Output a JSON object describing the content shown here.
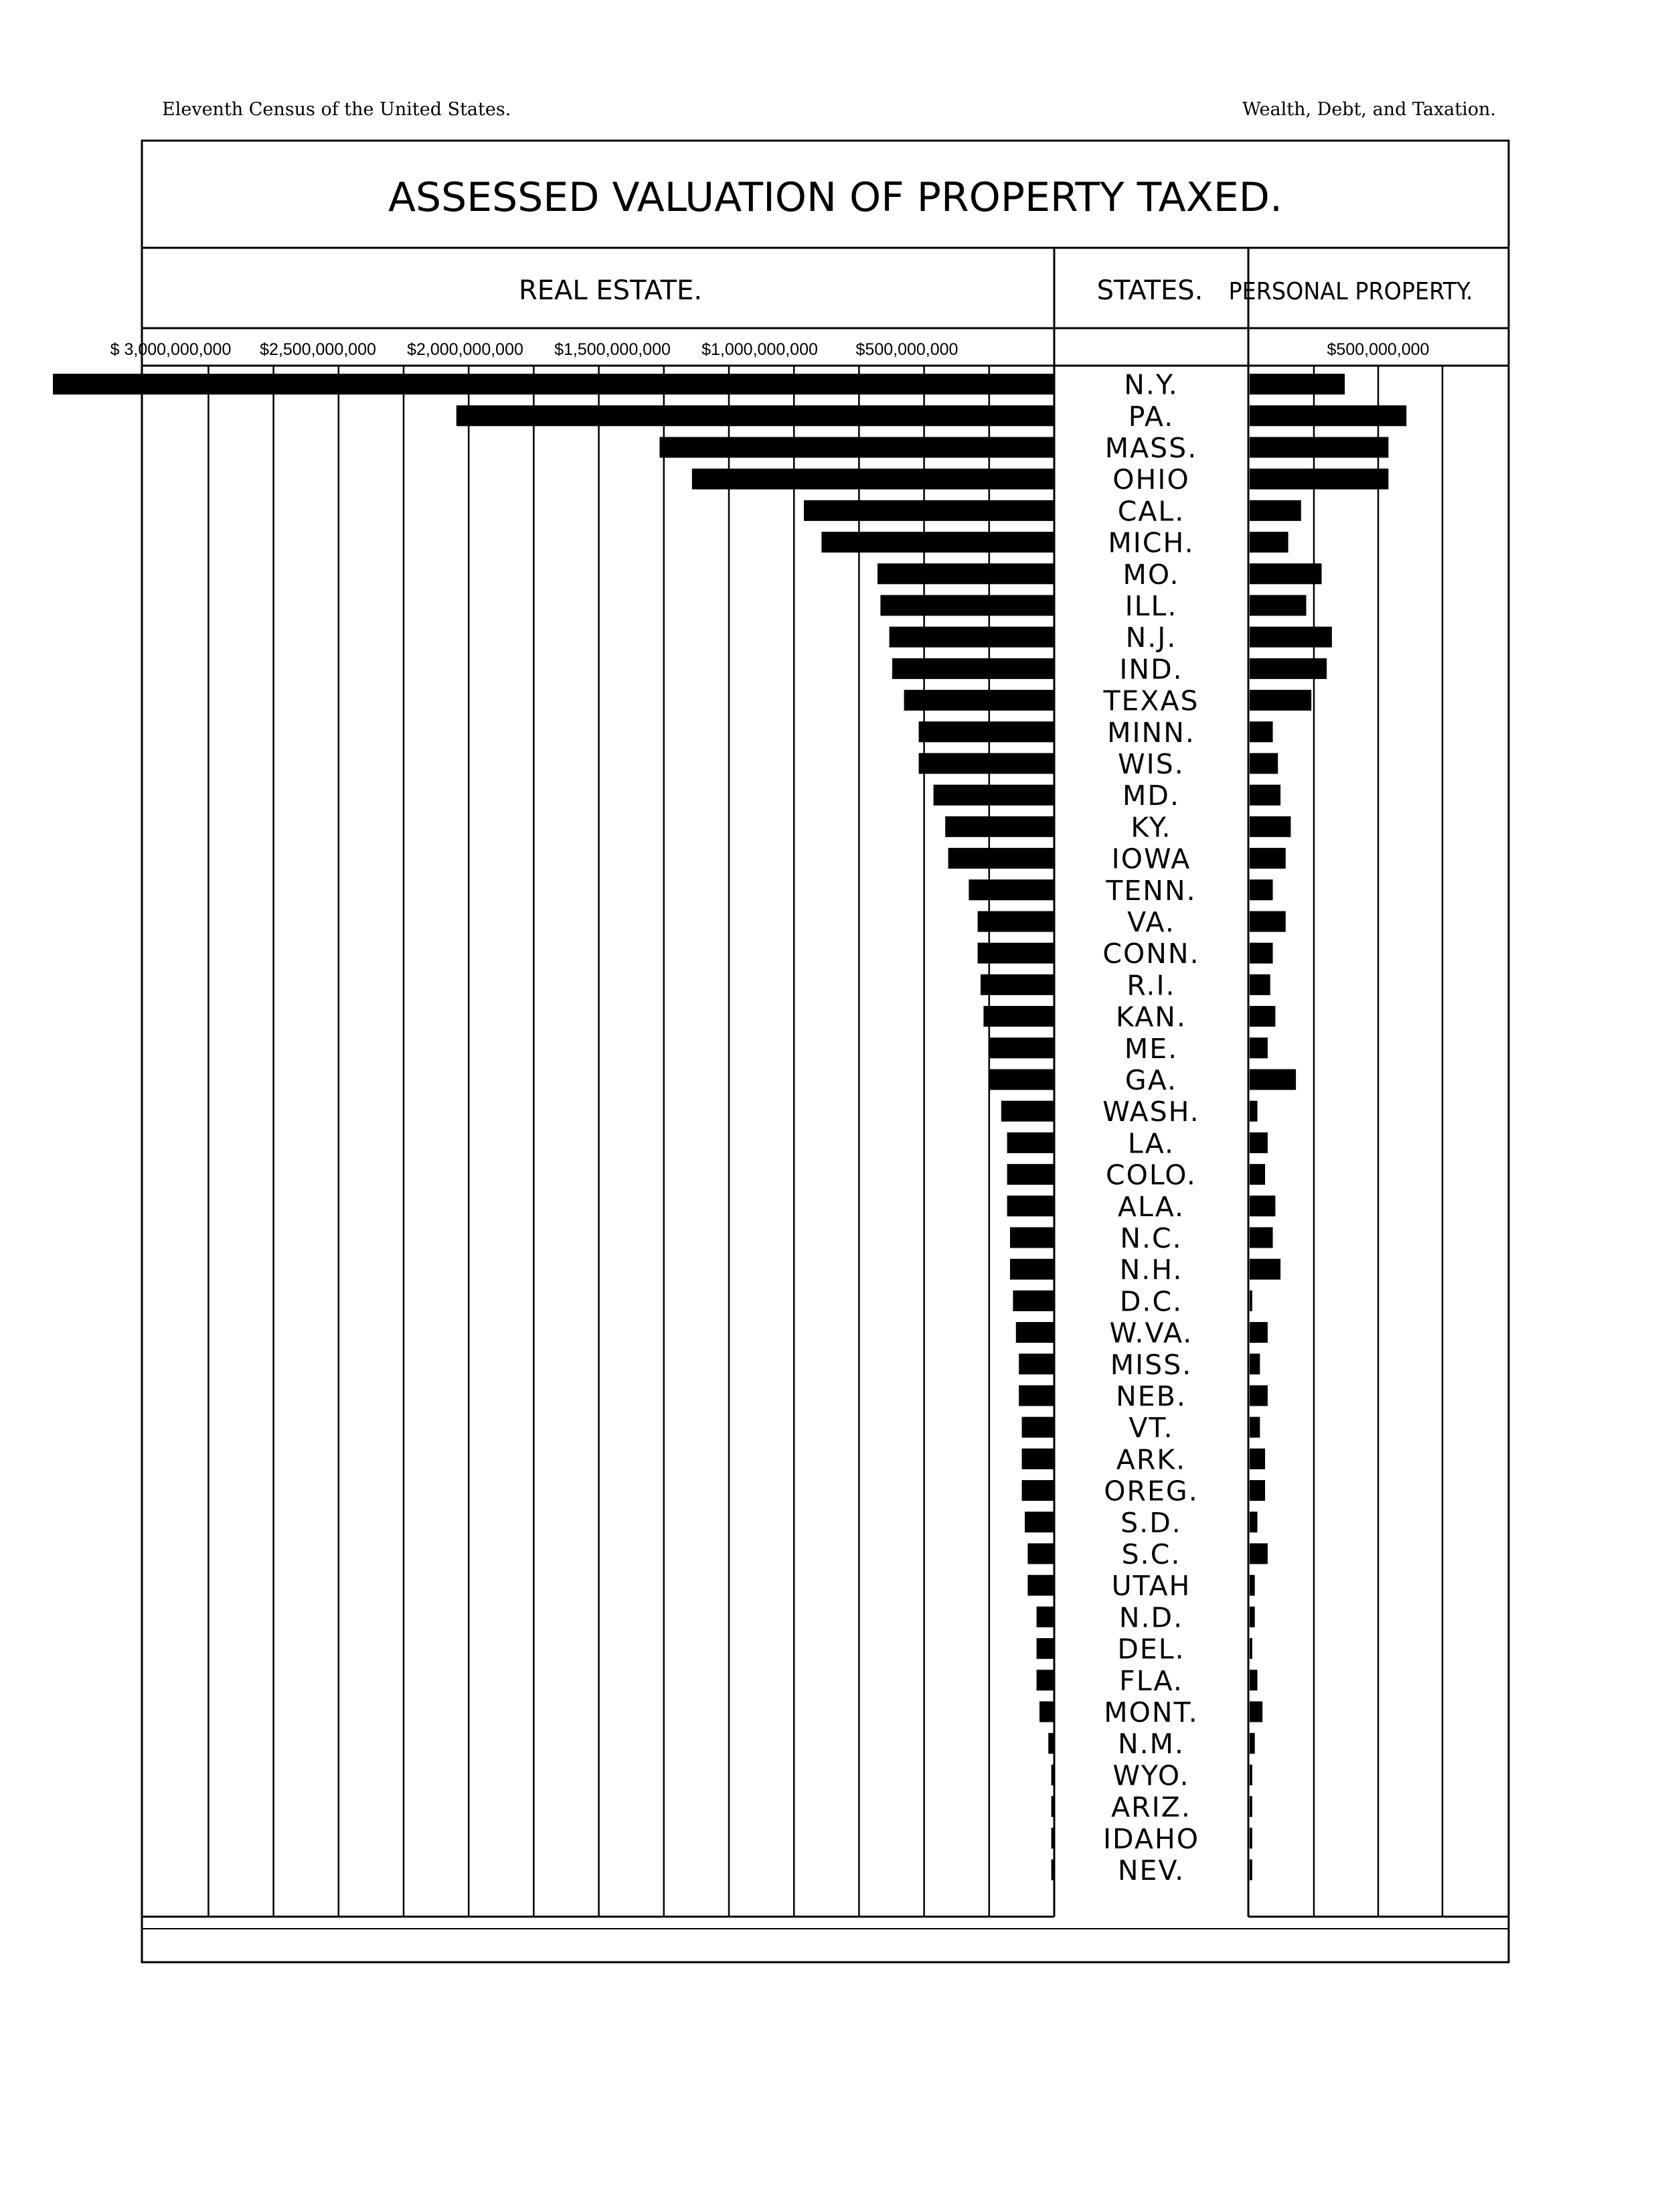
{
  "page": {
    "header_left": "Eleventh Census of the United States.",
    "header_right": "Wealth, Debt, and Taxation."
  },
  "chart_data": {
    "type": "bar",
    "title": "ASSESSED VALUATION OF PROPERTY TAXED.",
    "center_header": "STATES.",
    "left_panel": {
      "header": "REAL ESTATE.",
      "tick_labels": [
        "$ 3,000,000,000",
        "$2,500,000,000",
        "$2,000,000,000",
        "$1,500,000,000",
        "$1,000,000,000",
        "$500,000,000"
      ],
      "tick_values": [
        3000000000,
        2500000000,
        2000000000,
        1500000000,
        1000000000,
        500000000
      ],
      "xlim": [
        0,
        3500000000
      ],
      "grid": true
    },
    "right_panel": {
      "header": "PERSONAL PROPERTY.",
      "tick_labels": [
        "$500,000,000"
      ],
      "tick_values": [
        500000000
      ],
      "xlim": [
        0,
        1000000000
      ],
      "grid": true
    },
    "categories": [
      "N.Y.",
      "PA.",
      "MASS.",
      "OHIO",
      "CAL.",
      "MICH.",
      "MO.",
      "ILL.",
      "N.J.",
      "IND.",
      "TEXAS",
      "MINN.",
      "WIS.",
      "MD.",
      "KY.",
      "IOWA",
      "TENN.",
      "VA.",
      "CONN.",
      "R.I.",
      "KAN.",
      "ME.",
      "GA.",
      "WASH.",
      "LA.",
      "COLO.",
      "ALA.",
      "N.C.",
      "N.H.",
      "D.C.",
      "W.VA.",
      "MISS.",
      "NEB.",
      "VT.",
      "ARK.",
      "OREG.",
      "S.D.",
      "S.C.",
      "UTAH",
      "N.D.",
      "DEL.",
      "FLA.",
      "MONT.",
      "N.M.",
      "WYO.",
      "ARIZ.",
      "IDAHO",
      "NEV."
    ],
    "series": [
      {
        "name": "REAL ESTATE.",
        "values": [
          3400000000,
          2030000000,
          1340000000,
          1230000000,
          850000000,
          790000000,
          600000000,
          590000000,
          560000000,
          550000000,
          510000000,
          460000000,
          460000000,
          410000000,
          370000000,
          360000000,
          290000000,
          260000000,
          260000000,
          250000000,
          240000000,
          220000000,
          220000000,
          180000000,
          160000000,
          160000000,
          160000000,
          150000000,
          150000000,
          140000000,
          130000000,
          120000000,
          120000000,
          110000000,
          110000000,
          110000000,
          100000000,
          90000000,
          90000000,
          60000000,
          60000000,
          60000000,
          50000000,
          20000000,
          10000000,
          10000000,
          10000000,
          10000000
        ]
      },
      {
        "name": "PERSONAL PROPERTY.",
        "values": [
          370000000,
          610000000,
          540000000,
          540000000,
          200000000,
          150000000,
          280000000,
          220000000,
          320000000,
          300000000,
          240000000,
          90000000,
          110000000,
          120000000,
          160000000,
          140000000,
          90000000,
          140000000,
          90000000,
          80000000,
          100000000,
          70000000,
          180000000,
          30000000,
          70000000,
          60000000,
          100000000,
          90000000,
          120000000,
          10000000,
          70000000,
          40000000,
          70000000,
          40000000,
          60000000,
          60000000,
          30000000,
          70000000,
          20000000,
          20000000,
          10000000,
          30000000,
          50000000,
          20000000,
          10000000,
          10000000,
          10000000,
          10000000
        ]
      }
    ]
  }
}
